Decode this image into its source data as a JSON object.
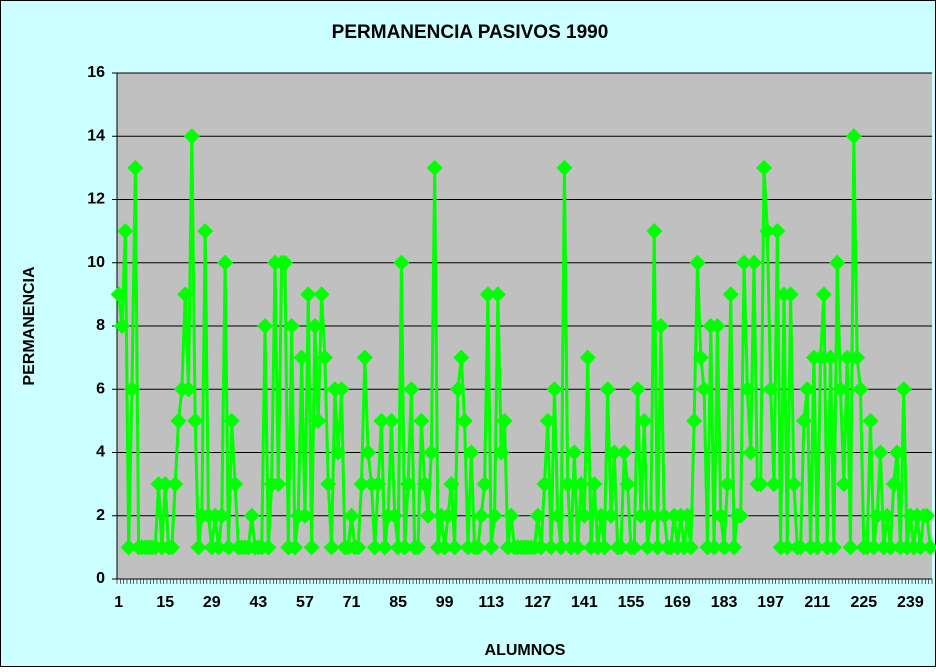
{
  "chart_data": {
    "type": "line",
    "title": "PERMANENCIA PASIVOS 1990",
    "x_label": "ALUMNOS",
    "y_label": "PERMANENCIA",
    "categories": [
      1,
      null,
      null,
      null,
      null,
      null,
      null,
      null,
      null,
      null,
      null,
      null,
      null,
      null,
      15,
      null,
      null,
      null,
      null,
      null,
      null,
      null,
      null,
      null,
      null,
      null,
      null,
      null,
      29,
      null,
      null,
      null,
      null,
      null,
      null,
      null,
      null,
      null,
      null,
      null,
      null,
      null,
      43,
      null,
      null,
      null,
      null,
      null,
      null,
      null,
      null,
      null,
      null,
      null,
      null,
      null,
      57,
      null,
      null,
      null,
      null,
      null,
      null,
      null,
      null,
      null,
      null,
      null,
      null,
      null,
      71,
      null,
      null,
      null,
      null,
      null,
      null,
      null,
      null,
      null,
      null,
      null,
      null,
      null,
      85,
      null,
      null,
      null,
      null,
      null,
      null,
      null,
      null,
      null,
      null,
      null,
      null,
      null,
      99,
      null,
      null,
      null,
      null,
      null,
      null,
      null,
      null,
      null,
      null,
      null,
      null,
      null,
      113,
      null,
      null,
      null,
      null,
      null,
      null,
      null,
      null,
      null,
      null,
      null,
      null,
      null,
      127,
      null,
      null,
      null,
      null,
      null,
      null,
      null,
      null,
      null,
      null,
      null,
      null,
      null,
      141,
      null,
      null,
      null,
      null,
      null,
      null,
      null,
      null,
      null,
      null,
      null,
      null,
      null,
      155,
      null,
      null,
      null,
      null,
      null,
      null,
      null,
      null,
      null,
      null,
      null,
      null,
      null,
      169,
      null,
      null,
      null,
      null,
      null,
      null,
      null,
      null,
      null,
      null,
      null,
      null,
      null,
      183,
      null,
      null,
      null,
      null,
      null,
      null,
      null,
      null,
      null,
      null,
      null,
      null,
      null,
      197,
      null,
      null,
      null,
      null,
      null,
      null,
      null,
      null,
      null,
      null,
      null,
      null,
      null,
      211,
      null,
      null,
      null,
      null,
      null,
      null,
      null,
      null,
      null,
      null,
      null,
      null,
      null,
      225,
      null,
      null,
      null,
      null,
      null,
      null,
      null,
      null,
      null,
      null,
      null,
      null,
      null,
      239,
      null,
      null,
      null,
      null,
      null,
      null
    ],
    "series": [
      {
        "name": "PERMANENCIA",
        "color": "#00ff00",
        "values": [
          9,
          8,
          11,
          1,
          6,
          13,
          1,
          1,
          1,
          1,
          1,
          1,
          3,
          1,
          3,
          1,
          1,
          3,
          5,
          6,
          9,
          6,
          14,
          5,
          1,
          2,
          11,
          2,
          1,
          2,
          1,
          2,
          10,
          1,
          5,
          3,
          1,
          1,
          1,
          1,
          2,
          1,
          1,
          1,
          8,
          1,
          3,
          10,
          3,
          10,
          10,
          1,
          8,
          1,
          2,
          7,
          2,
          9,
          1,
          8,
          5,
          9,
          7,
          3,
          1,
          6,
          4,
          6,
          1,
          1,
          2,
          1,
          1,
          3,
          7,
          4,
          3,
          1,
          3,
          5,
          1,
          2,
          5,
          2,
          1,
          10,
          1,
          3,
          6,
          1,
          1,
          5,
          3,
          2,
          4,
          13,
          1,
          2,
          1,
          2,
          3,
          1,
          6,
          7,
          5,
          1,
          4,
          1,
          1,
          2,
          3,
          9,
          1,
          2,
          9,
          4,
          5,
          1,
          2,
          1,
          1,
          1,
          1,
          1,
          1,
          1,
          2,
          1,
          3,
          5,
          1,
          6,
          2,
          1,
          13,
          3,
          1,
          4,
          1,
          3,
          2,
          7,
          1,
          3,
          1,
          2,
          1,
          6,
          2,
          4,
          1,
          1,
          4,
          3,
          1,
          1,
          6,
          2,
          5,
          1,
          2,
          11,
          1,
          8,
          2,
          1,
          1,
          2,
          1,
          2,
          1,
          2,
          1,
          5,
          10,
          7,
          6,
          1,
          8,
          1,
          8,
          2,
          1,
          3,
          9,
          1,
          2,
          2,
          10,
          6,
          4,
          10,
          3,
          3,
          13,
          11,
          6,
          3,
          11,
          1,
          9,
          1,
          9,
          3,
          1,
          1,
          5,
          6,
          1,
          7,
          1,
          7,
          9,
          1,
          7,
          1,
          10,
          6,
          3,
          7,
          1,
          14,
          7,
          6,
          1,
          1,
          5,
          1,
          2,
          4,
          1,
          2,
          1,
          3,
          4,
          1,
          6,
          1,
          2,
          1,
          2,
          1,
          2,
          2,
          1
        ]
      }
    ],
    "ylim": [
      0,
      16
    ],
    "yticks": [
      0,
      2,
      4,
      6,
      8,
      10,
      12,
      14,
      16
    ],
    "grid": true
  }
}
